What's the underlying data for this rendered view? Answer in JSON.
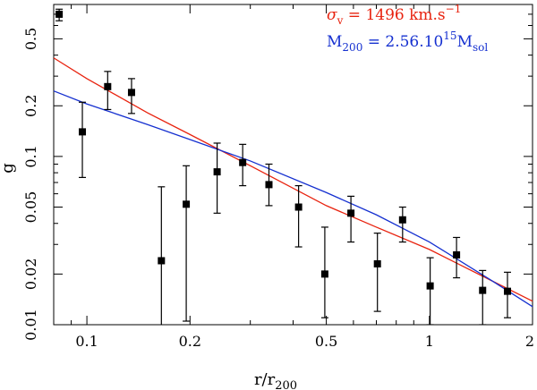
{
  "chart_data": {
    "type": "scatter",
    "title": "",
    "xlabel": "r/r",
    "xlabel_sub": "200",
    "ylabel": "g",
    "x_scale": "log",
    "y_scale": "log",
    "xlim": [
      0.08,
      2.0
    ],
    "ylim": [
      0.01,
      0.8
    ],
    "x_ticks": [
      {
        "value": 0.1,
        "label": "0.1"
      },
      {
        "value": 0.2,
        "label": "0.2"
      },
      {
        "value": 0.5,
        "label": "0.5"
      },
      {
        "value": 1,
        "label": "1"
      },
      {
        "value": 2,
        "label": "2"
      }
    ],
    "y_ticks": [
      {
        "value": 0.01,
        "label": "0.01"
      },
      {
        "value": 0.02,
        "label": "0.02"
      },
      {
        "value": 0.05,
        "label": "0.05"
      },
      {
        "value": 0.1,
        "label": "0.1"
      },
      {
        "value": 0.2,
        "label": "0.2"
      },
      {
        "value": 0.5,
        "label": "0.5"
      }
    ],
    "points": [
      {
        "x": 0.083,
        "y": 0.7,
        "ylo": 0.64,
        "yhi": 0.75
      },
      {
        "x": 0.097,
        "y": 0.14,
        "ylo": 0.075,
        "yhi": 0.21
      },
      {
        "x": 0.115,
        "y": 0.26,
        "ylo": 0.19,
        "yhi": 0.32
      },
      {
        "x": 0.135,
        "y": 0.24,
        "ylo": 0.18,
        "yhi": 0.29
      },
      {
        "x": 0.165,
        "y": 0.024,
        "ylo": 0.009,
        "yhi": 0.066
      },
      {
        "x": 0.195,
        "y": 0.052,
        "ylo": 0.0105,
        "yhi": 0.088
      },
      {
        "x": 0.24,
        "y": 0.081,
        "ylo": 0.046,
        "yhi": 0.12
      },
      {
        "x": 0.285,
        "y": 0.092,
        "ylo": 0.067,
        "yhi": 0.118
      },
      {
        "x": 0.34,
        "y": 0.068,
        "ylo": 0.051,
        "yhi": 0.09
      },
      {
        "x": 0.415,
        "y": 0.05,
        "ylo": 0.029,
        "yhi": 0.067
      },
      {
        "x": 0.495,
        "y": 0.02,
        "ylo": 0.011,
        "yhi": 0.038
      },
      {
        "x": 0.59,
        "y": 0.046,
        "ylo": 0.031,
        "yhi": 0.058
      },
      {
        "x": 0.705,
        "y": 0.023,
        "ylo": 0.012,
        "yhi": 0.035
      },
      {
        "x": 0.835,
        "y": 0.042,
        "ylo": 0.031,
        "yhi": 0.05
      },
      {
        "x": 1.005,
        "y": 0.017,
        "ylo": 0.01,
        "yhi": 0.025
      },
      {
        "x": 1.2,
        "y": 0.026,
        "ylo": 0.019,
        "yhi": 0.033
      },
      {
        "x": 1.43,
        "y": 0.016,
        "ylo": 0.01,
        "yhi": 0.021
      },
      {
        "x": 1.69,
        "y": 0.0158,
        "ylo": 0.011,
        "yhi": 0.0205
      }
    ],
    "series": [
      {
        "name": "sigma_v = 1496 km.s^-1",
        "color": "#e8230f",
        "x": [
          0.08,
          0.1,
          0.15,
          0.2,
          0.3,
          0.5,
          0.7,
          1.0,
          1.5,
          2.0
        ],
        "y": [
          0.385,
          0.29,
          0.182,
          0.135,
          0.088,
          0.051,
          0.038,
          0.028,
          0.0185,
          0.0138
        ]
      },
      {
        "name": "M_200 = 2.56.10^15 M_sol",
        "color": "#1530d0",
        "x": [
          0.08,
          0.1,
          0.15,
          0.2,
          0.3,
          0.5,
          0.7,
          1.0,
          1.5,
          2.0
        ],
        "y": [
          0.245,
          0.205,
          0.155,
          0.126,
          0.094,
          0.061,
          0.045,
          0.031,
          0.0186,
          0.0128
        ]
      }
    ],
    "legend": {
      "placement": "top-right",
      "red": {
        "sym": "σ",
        "sub": "v",
        "mid": " = 1496 km.s",
        "sup": "−1"
      },
      "blue": {
        "pre": "M",
        "sub": "200",
        "mid": " = 2.56.10",
        "sup": "15",
        "post": "M",
        "sub2": "sol"
      }
    }
  }
}
